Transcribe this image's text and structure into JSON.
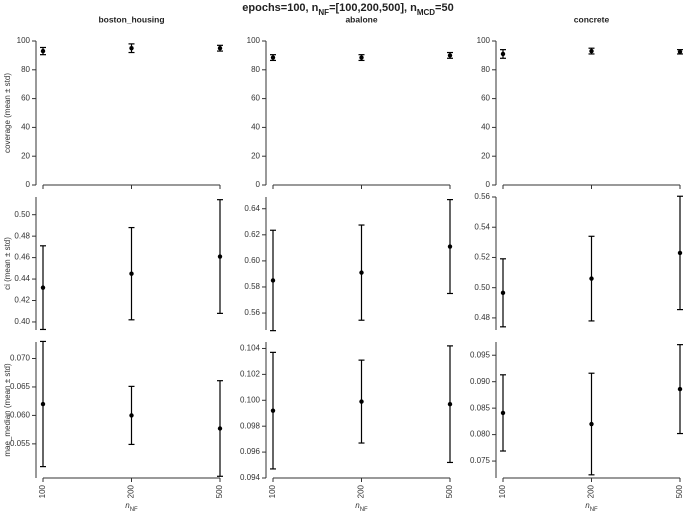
{
  "title": [
    "epochs=100, n",
    "NF",
    "=[100,200,500], n",
    "MCD",
    "=50"
  ],
  "chart_data": [
    {
      "type": "errorbar",
      "title": "boston_housing",
      "ylabel": "coverage (mean ± std)",
      "color": "#000000",
      "categories": [
        null,
        null,
        null
      ],
      "values": [
        93,
        95,
        95
      ],
      "errors": [
        2.5,
        3,
        2
      ],
      "ylim": [
        0,
        100
      ],
      "yticks": [
        0,
        20,
        40,
        60,
        80,
        100
      ]
    },
    {
      "type": "errorbar",
      "title": "abalone",
      "color": "#000000",
      "categories": [
        null,
        null,
        null
      ],
      "values": [
        88.5,
        88.5,
        90
      ],
      "errors": [
        2,
        2,
        2
      ],
      "ylim": [
        0,
        100
      ],
      "yticks": [
        0,
        20,
        40,
        60,
        80,
        100
      ]
    },
    {
      "type": "errorbar",
      "title": "concrete",
      "color": "#000000",
      "categories": [
        null,
        null,
        null
      ],
      "values": [
        91,
        93,
        92.5
      ],
      "errors": [
        3,
        2,
        1.5
      ],
      "ylim": [
        0,
        100
      ],
      "yticks": [
        0,
        20,
        40,
        60,
        80,
        100
      ]
    },
    {
      "type": "errorbar",
      "ylabel": "ci (mean ± std)",
      "color": "#000000",
      "categories": [
        null,
        null,
        null
      ],
      "values": [
        0.432,
        0.445,
        0.461
      ],
      "errors": [
        0.039,
        0.043,
        0.053
      ],
      "ylim": [
        0.3925,
        0.5165
      ],
      "yticks": [
        {
          "value": 0.4,
          "label": "0.40"
        },
        0.42,
        0.44,
        0.46,
        0.48,
        {
          "value": 0.5,
          "label": "0.50"
        }
      ]
    },
    {
      "type": "errorbar",
      "color": "#000000",
      "categories": [
        null,
        null,
        null
      ],
      "values": [
        0.585,
        0.591,
        0.611
      ],
      "errors": [
        0.0385,
        0.0365,
        0.036
      ],
      "ylim": [
        0.547,
        0.649
      ],
      "yticks": [
        0.56,
        0.58,
        {
          "value": 0.6,
          "label": "0.60"
        },
        0.62,
        0.64
      ]
    },
    {
      "type": "errorbar",
      "color": "#000000",
      "categories": [
        null,
        null,
        null
      ],
      "values": [
        0.4966,
        0.506,
        0.523
      ],
      "errors": [
        0.0225,
        0.028,
        0.0375
      ],
      "ylim": [
        0.472,
        0.56
      ],
      "yticks": [
        0.48,
        {
          "value": 0.5,
          "label": "0.50"
        },
        0.52,
        0.54,
        0.56
      ]
    },
    {
      "type": "errorbar",
      "ylabel": "mae_median (mean ± std)",
      "xlabel": [
        "n",
        "NF"
      ],
      "color": "#000000",
      "categories": [
        "100",
        "200",
        "500"
      ],
      "values": [
        0.062,
        0.06,
        0.0577
      ],
      "errors": [
        0.011,
        0.0051,
        0.0084
      ],
      "ylim": [
        0.049,
        0.0729
      ],
      "yticks": [
        0.055,
        {
          "value": 0.06,
          "label": "0.060"
        },
        0.065,
        {
          "value": 0.07,
          "label": "0.070"
        }
      ]
    },
    {
      "type": "errorbar",
      "xlabel": [
        "n",
        "NF"
      ],
      "color": "#000000",
      "categories": [
        "100",
        "200",
        "500"
      ],
      "values": [
        0.0992,
        0.0999,
        0.0997
      ],
      "errors": [
        0.0045,
        0.0032,
        0.0045
      ],
      "ylim": [
        0.094,
        0.1045
      ],
      "yticks": [
        0.094,
        0.096,
        0.098,
        {
          "value": 0.1,
          "label": "0.100"
        },
        0.102,
        0.104
      ]
    },
    {
      "type": "errorbar",
      "xlabel": [
        "n",
        "NF"
      ],
      "color": "#000000",
      "categories": [
        "100",
        "200",
        "500"
      ],
      "values": [
        0.0841,
        0.082,
        0.0886
      ],
      "errors": [
        0.0072,
        0.0096,
        0.0084
      ],
      "ylim": [
        0.0718,
        0.0975
      ],
      "yticks": [
        0.075,
        {
          "value": 0.08,
          "label": "0.080"
        },
        0.085,
        {
          "value": 0.09,
          "label": "0.090"
        },
        0.095
      ]
    }
  ]
}
